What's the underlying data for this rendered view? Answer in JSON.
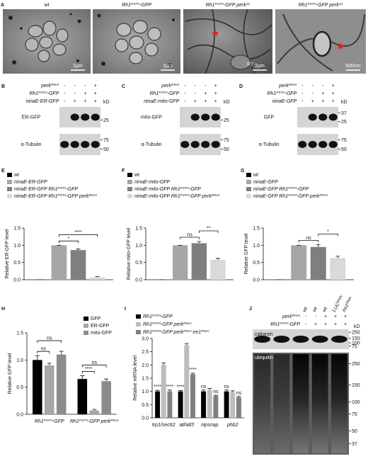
{
  "panel_a": {
    "letter": "A",
    "images": [
      {
        "label": "wt",
        "scale_bar": "2μm"
      },
      {
        "label": [
          "Rh1",
          {
            "sup": "P37H"
          },
          "-GFP"
        ],
        "scale_bar": "2μm"
      },
      {
        "label": [
          "Rh1",
          {
            "sup": "P37H"
          },
          "-GFP perk",
          {
            "sup": "12"
          }
        ],
        "scale_bar": "2μm",
        "annotation": "R7"
      },
      {
        "label": [
          "Rh1",
          {
            "sup": "P37H"
          },
          "-GFP perk",
          {
            "sup": "12"
          }
        ],
        "scale_bar": "500nm"
      }
    ]
  },
  "panel_b": {
    "letter": "B",
    "rows": [
      {
        "label": [
          "perk",
          {
            "sup": "RNAi"
          }
        ],
        "signs": [
          "-",
          "-",
          "-",
          "+"
        ]
      },
      {
        "label": [
          "Rh1",
          {
            "sup": "P37H"
          },
          "-GFP"
        ],
        "signs": [
          "-",
          "-",
          "+",
          "+"
        ]
      },
      {
        "label": "ninaE-ER-GFP",
        "signs": [
          "-",
          "+",
          "+",
          "+"
        ]
      }
    ],
    "unit": "kD",
    "blots": [
      {
        "label": "ER-GFP",
        "markers": [
          25
        ]
      },
      {
        "label": "α-Tubulin",
        "markers": [
          75,
          50
        ]
      }
    ]
  },
  "panel_c": {
    "letter": "C",
    "rows": [
      {
        "label": [
          "perk",
          {
            "sup": "RNAi"
          }
        ],
        "signs": [
          "-",
          "-",
          "-",
          "+"
        ]
      },
      {
        "label": [
          "Rh1",
          {
            "sup": "P37H"
          },
          "-GFP"
        ],
        "signs": [
          "-",
          "-",
          "+",
          "+"
        ]
      },
      {
        "label": "ninaE-mito-GFP",
        "signs": [
          "-",
          "+",
          "+",
          "+"
        ]
      }
    ],
    "unit": "kD",
    "blots": [
      {
        "label": "mito-GFP",
        "markers": [
          25
        ]
      },
      {
        "label": "α-Tubulin",
        "markers": [
          75,
          50
        ]
      }
    ]
  },
  "panel_d": {
    "letter": "D",
    "rows": [
      {
        "label": [
          "perk",
          {
            "sup": "RNAi"
          }
        ],
        "signs": [
          "-",
          "-",
          "-",
          "+"
        ]
      },
      {
        "label": [
          "Rh1",
          {
            "sup": "P37H"
          },
          "-GFP"
        ],
        "signs": [
          "-",
          "-",
          "+",
          "+"
        ]
      },
      {
        "label": "ninaE-GFP",
        "signs": [
          "-",
          "+",
          "+",
          "+"
        ]
      }
    ],
    "unit": "kD",
    "blots": [
      {
        "label": "GFP",
        "markers": [
          37,
          25
        ]
      },
      {
        "label": "α-Tubulin",
        "markers": [
          75,
          50
        ]
      }
    ]
  },
  "panel_j": {
    "letter": "J",
    "columns": [
      "wt",
      "wt",
      "wt",
      [
        "LUC",
        {
          "sup": "RNAi"
        }
      ],
      [
        "ire1",
        {
          "sup": "RNAi"
        }
      ]
    ],
    "rows": [
      {
        "label": [
          "perk",
          {
            "sup": "RNAi"
          }
        ],
        "signs": [
          "-",
          "-",
          "+",
          "+",
          "+"
        ]
      },
      {
        "label": [
          "Rh1",
          {
            "sup": "P37H"
          },
          "-GFP"
        ],
        "signs": [
          "-",
          "+",
          "+",
          "+",
          "+"
        ]
      }
    ],
    "unit": "kD",
    "blots": [
      {
        "label": "calnexin",
        "markers": [
          250,
          150,
          100,
          75
        ]
      },
      {
        "label": "ubiquitin",
        "markers": [
          250,
          150,
          100,
          75,
          50,
          37
        ]
      }
    ]
  },
  "chart_data": [
    {
      "letter": "E",
      "type": "bar",
      "ylabel": "Relative ER-GFP level",
      "legend": "top",
      "ylim": [
        0,
        1.5
      ],
      "yticks": [
        {
          "value": 0,
          "label": "0.0"
        },
        {
          "value": 0.5,
          "label": "0.5"
        },
        {
          "value": 1,
          "label": "1.0"
        },
        {
          "value": 1.5,
          "label": "1.5"
        }
      ],
      "series": [
        {
          "name": "wt",
          "color": "#000000",
          "values": [
            0
          ],
          "errors": [
            0
          ]
        },
        {
          "name": "ninaE-ER-GFP",
          "color": "#a6a6a6",
          "values": [
            1
          ],
          "errors": [
            0
          ]
        },
        {
          "name": [
            "ninaE-ER-GFP Rh1",
            {
              "sup": "P37H"
            },
            "-GFP"
          ],
          "color": "#7f7f7f",
          "values": [
            0.86
          ],
          "errors": [
            0.03
          ]
        },
        {
          "name": [
            "ninaE-ER-GFP Rh1",
            {
              "sup": "P37H"
            },
            "-GFP perk",
            {
              "sup": "RNAi"
            }
          ],
          "color": "#d9d9d9",
          "values": [
            0.07
          ],
          "errors": [
            0.02
          ]
        }
      ],
      "annotations": [
        {
          "text": "*",
          "from": 1,
          "to": 2
        },
        {
          "text": "****",
          "from": 1,
          "to": 3
        }
      ]
    },
    {
      "letter": "F",
      "type": "bar",
      "ylabel": "Relative mito-GFP level",
      "legend": "top",
      "ylim": [
        0,
        1.5
      ],
      "yticks": [
        {
          "value": 0,
          "label": "0.0"
        },
        {
          "value": 0.5,
          "label": "0.5"
        },
        {
          "value": 1,
          "label": "1.0"
        },
        {
          "value": 1.5,
          "label": "1.5"
        }
      ],
      "series": [
        {
          "name": "wt",
          "color": "#000000",
          "values": [
            0
          ],
          "errors": [
            0
          ]
        },
        {
          "name": "ninaE-mito-GFP",
          "color": "#a6a6a6",
          "values": [
            1
          ],
          "errors": [
            0
          ]
        },
        {
          "name": [
            "ninaE-mito-GFP Rh1",
            {
              "sup": "P37H"
            },
            "-GFP"
          ],
          "color": "#7f7f7f",
          "values": [
            1.06
          ],
          "errors": [
            0.05
          ]
        },
        {
          "name": [
            "ninaE-mito-GFP Rh1",
            {
              "sup": "P37H"
            },
            "-GFP perk",
            {
              "sup": "RNAi"
            }
          ],
          "color": "#d9d9d9",
          "values": [
            0.58
          ],
          "errors": [
            0.04
          ]
        }
      ],
      "annotations": [
        {
          "text": "ns",
          "from": 1,
          "to": 2
        },
        {
          "text": "**",
          "from": 2,
          "to": 3
        }
      ]
    },
    {
      "letter": "G",
      "type": "bar",
      "ylabel": "Relative GFP level",
      "legend": "top",
      "ylim": [
        0,
        1.5
      ],
      "yticks": [
        {
          "value": 0,
          "label": "0.0"
        },
        {
          "value": 0.5,
          "label": "0.5"
        },
        {
          "value": 1,
          "label": "1.0"
        },
        {
          "value": 1.5,
          "label": "1.5"
        }
      ],
      "series": [
        {
          "name": "wt",
          "color": "#000000",
          "values": [
            0
          ],
          "errors": [
            0
          ]
        },
        {
          "name": "ninaE-GFP",
          "color": "#a6a6a6",
          "values": [
            1
          ],
          "errors": [
            0
          ]
        },
        {
          "name": [
            "ninaE-GFP Rh1",
            {
              "sup": "P37H"
            },
            "-GFP"
          ],
          "color": "#7f7f7f",
          "values": [
            0.95
          ],
          "errors": [
            0.07
          ]
        },
        {
          "name": [
            "ninaE-GFP Rh1",
            {
              "sup": "P37H"
            },
            "-GFP perk",
            {
              "sup": "RNAi"
            }
          ],
          "color": "#d9d9d9",
          "values": [
            0.63
          ],
          "errors": [
            0.05
          ]
        }
      ],
      "annotations": [
        {
          "text": "ns",
          "from": 1,
          "to": 2
        },
        {
          "text": "*",
          "from": 2,
          "to": 3
        }
      ]
    },
    {
      "letter": "H",
      "type": "bar",
      "ylabel": "Relative GFP level",
      "legend": "upper right",
      "ylim": [
        0,
        1.5
      ],
      "yticks": [
        {
          "value": 0,
          "label": "0.0"
        },
        {
          "value": 0.5,
          "label": "0.5"
        },
        {
          "value": 1,
          "label": "1.0"
        },
        {
          "value": 1.5,
          "label": "1.5"
        }
      ],
      "categories": [
        [
          "Rh1",
          {
            "sup": "P37H"
          },
          "-GFP"
        ],
        [
          "Rh1",
          {
            "sup": "P37H"
          },
          "-GFP perk",
          {
            "sup": "RNAi"
          }
        ]
      ],
      "series": [
        {
          "name": "GFP",
          "color": "#000000",
          "values": [
            1.0,
            0.65
          ],
          "errors": [
            0.08,
            0.06
          ]
        },
        {
          "name": "ER-GFP",
          "color": "#a6a6a6",
          "values": [
            0.9,
            0.07
          ],
          "errors": [
            0.04,
            0.02
          ]
        },
        {
          "name": "mito-GFP",
          "color": "#8c8c8c",
          "values": [
            1.1,
            0.61
          ],
          "errors": [
            0.06,
            0.04
          ]
        }
      ],
      "annotations": [
        {
          "text": "ns",
          "group": 0,
          "from": 0,
          "to": 1
        },
        {
          "text": "ns",
          "group": 0,
          "from": 0,
          "to": 2
        },
        {
          "text": "****",
          "group": 1,
          "from": 0,
          "to": 1
        },
        {
          "text": "ns",
          "group": 1,
          "from": 0,
          "to": 2
        }
      ]
    },
    {
      "letter": "I",
      "type": "bar",
      "ylabel": "Relative mRNA level",
      "legend": "top",
      "ylim": [
        0,
        3
      ],
      "yticks": [
        {
          "value": 0,
          "label": "0.0"
        },
        {
          "value": 0.5,
          "label": "0.5"
        },
        {
          "value": 1,
          "label": "1.0"
        },
        {
          "value": 1.5,
          "label": "1.5"
        },
        {
          "value": 2,
          "label": "2.0"
        },
        {
          "value": 2.5,
          "label": "2.5"
        },
        {
          "value": 3,
          "label": "3.0"
        }
      ],
      "categories": [
        "trp1/sec62",
        "atl/atl3",
        "nipsnap",
        "phb2"
      ],
      "series": [
        {
          "name": [
            "Rh1",
            {
              "sup": "P37H"
            },
            "-GFP"
          ],
          "color": "#000000",
          "values": [
            1,
            1,
            1,
            1
          ],
          "errors": [
            0.04,
            0.03,
            0.05,
            0.05
          ],
          "sig": [
            "****",
            "****",
            "ns",
            "ns"
          ]
        },
        {
          "name": [
            "Rh1",
            {
              "sup": "P37H"
            },
            "-GFP perk",
            {
              "sup": "RNAi"
            }
          ],
          "color": "#bdbdbd",
          "values": [
            2.0,
            2.75,
            1.05,
            0.97
          ],
          "errors": [
            0.08,
            0.06,
            0.06,
            0.05
          ]
        },
        {
          "name": [
            "Rh1",
            {
              "sup": "P37H"
            },
            "-GFP perk",
            {
              "sup": "RNAi"
            },
            " ire1",
            {
              "sup": "RNAi"
            }
          ],
          "color": "#7f7f7f",
          "values": [
            1.0,
            1.65,
            0.83,
            0.78
          ],
          "errors": [
            0.05,
            0.04,
            0.03,
            0.03
          ],
          "sig": [
            "****",
            "****",
            "ns",
            "ns"
          ]
        }
      ]
    }
  ]
}
